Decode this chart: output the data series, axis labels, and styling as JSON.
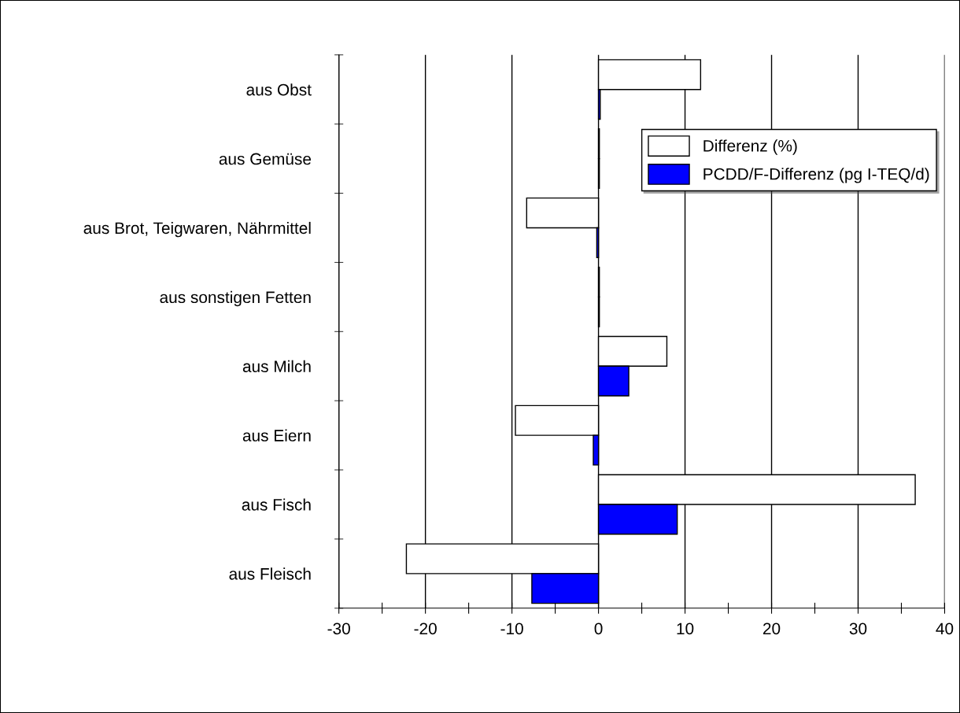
{
  "chart_data": {
    "type": "bar",
    "orientation": "horizontal",
    "categories": [
      "aus Obst",
      "aus Gemüse",
      "aus Brot, Teigwaren, Nährmittel",
      "aus sonstigen Fetten",
      "aus Milch",
      "aus Eiern",
      "aus Fisch",
      "aus Fleisch"
    ],
    "series": [
      {
        "name": "Differenz (%)",
        "color": "#ffffff",
        "values": [
          11.8,
          0.1,
          -8.3,
          0.1,
          7.9,
          -9.6,
          36.6,
          -22.2
        ]
      },
      {
        "name": "PCDD/F-Differenz (pg I-TEQ/d)",
        "color": "#0000ff",
        "values": [
          0.2,
          0.1,
          -0.2,
          0.1,
          3.5,
          -0.6,
          9.1,
          -7.7
        ]
      }
    ],
    "xlim": [
      -30,
      40
    ],
    "xticks": [
      -30,
      {
        "value": -25,
        "label": null
      },
      -20,
      {
        "value": -15,
        "label": null
      },
      -10,
      {
        "value": -5,
        "label": null
      },
      0,
      {
        "value": 5,
        "label": null
      },
      10,
      {
        "value": 15,
        "label": null
      },
      20,
      {
        "value": 25,
        "label": null
      },
      30,
      {
        "value": 35,
        "label": null
      },
      40
    ],
    "grid": "x",
    "legend": "top right"
  }
}
